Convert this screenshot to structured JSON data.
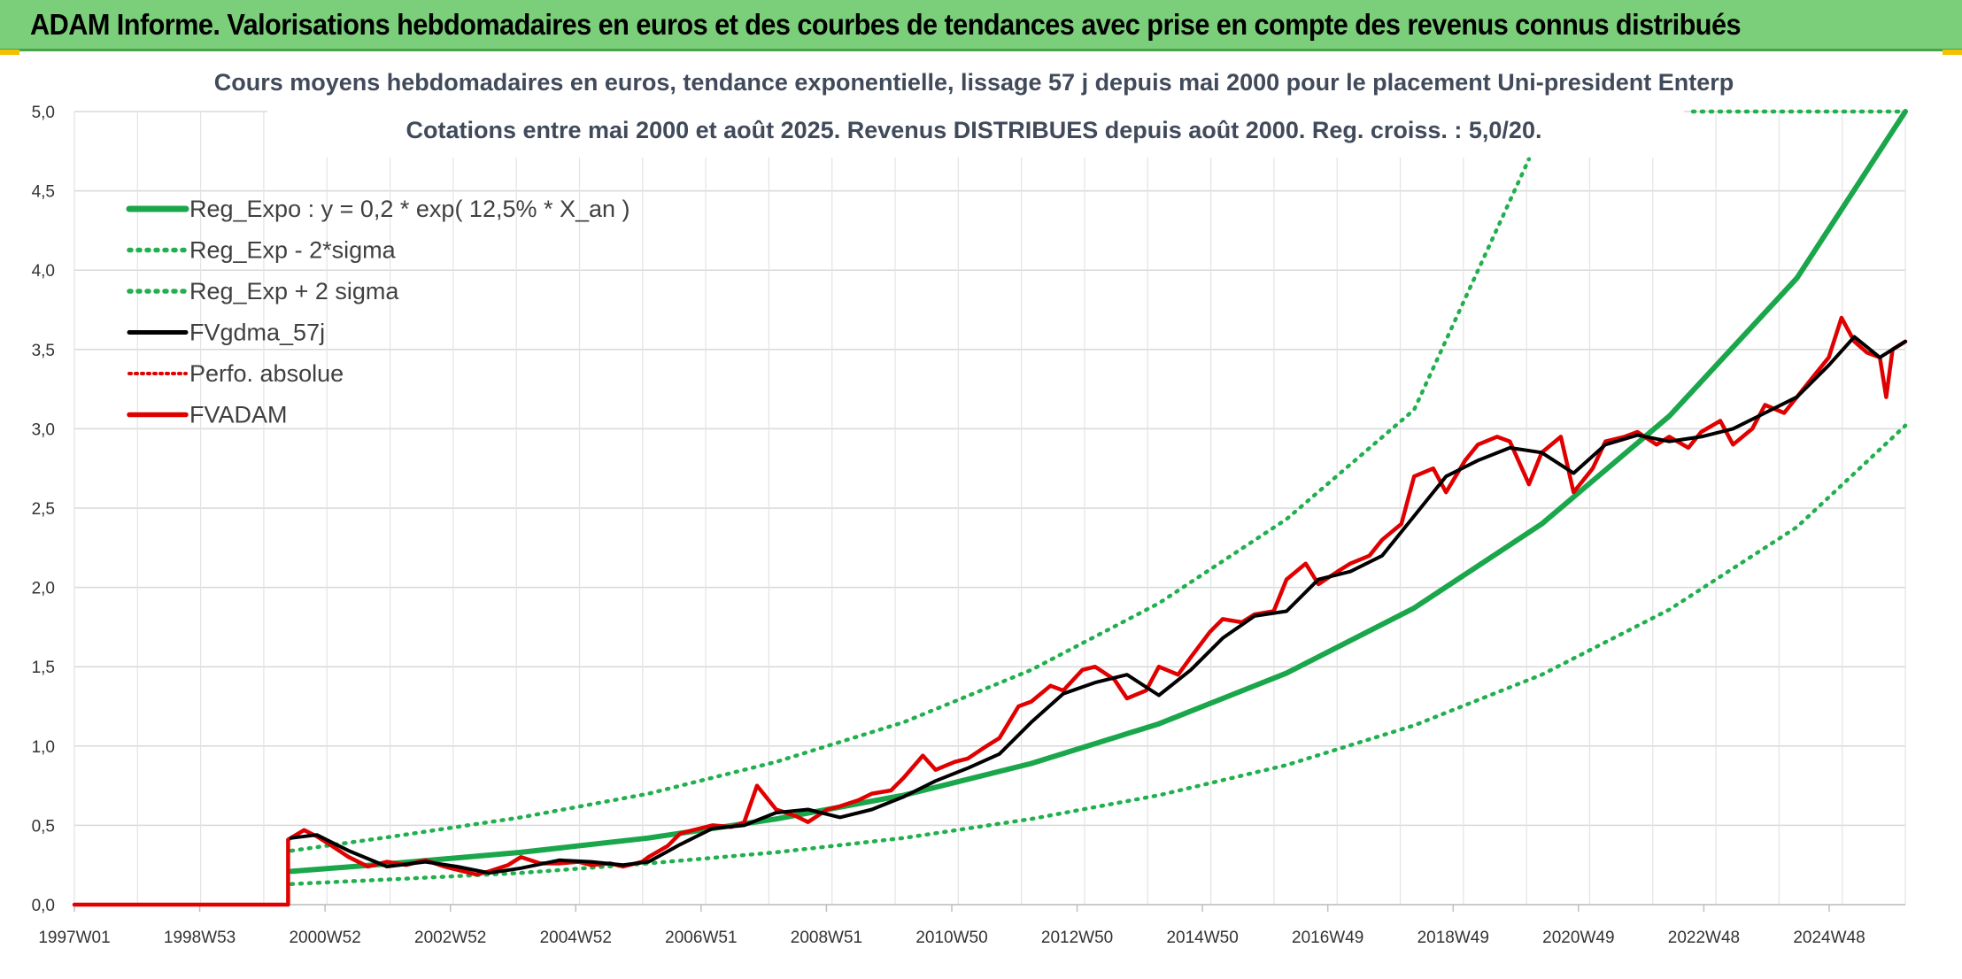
{
  "header": {
    "title": "ADAM Informe. Valorisations hebdomadaires en euros et des courbes de tendances avec prise en compte des revenus connus distribués"
  },
  "colors": {
    "header_bg": "#7ccf7a",
    "reg_green": "#1aa64a",
    "dotted_green": "#22b04f",
    "black_line": "#000000",
    "red_line": "#e00000"
  },
  "chart_data": {
    "type": "line",
    "title": "Cours moyens hebdomadaires en euros, tendance exponentielle, lissage 57 j depuis mai 2000 pour le placement Uni-president Enterp",
    "subtitle": "Cotations entre mai 2000 et août 2025. Revenus DISTRIBUES depuis août 2000. Reg. croiss. : 5,0/20.",
    "xlabel": "",
    "ylabel": "",
    "x_tick_labels": [
      "1997W01",
      "1998W53",
      "2000W52",
      "2002W52",
      "2004W52",
      "2006W51",
      "2008W51",
      "2010W50",
      "2012W50",
      "2014W50",
      "2016W49",
      "2018W49",
      "2020W49",
      "2022W48",
      "2024W48"
    ],
    "xlim": [
      1997.0,
      2025.7
    ],
    "ylim": [
      0,
      5.0
    ],
    "y_ticks": [
      "0,0",
      "0,5",
      "1,0",
      "1,5",
      "2,0",
      "2,5",
      "3,0",
      "3,5",
      "4,0",
      "4,5",
      "5,0"
    ],
    "grid": true,
    "legend_position": "top-left",
    "series": [
      {
        "name": "Reg_Expo : y = 0,2 * exp( 12,5% *  X_an )",
        "style": "solid",
        "color": "#1aa64a",
        "x": [
          2000.4,
          2002.0,
          2004.0,
          2006.0,
          2008.0,
          2010.0,
          2012.0,
          2014.0,
          2016.0,
          2018.0,
          2020.0,
          2022.0,
          2024.0,
          2025.7
        ],
        "y": [
          0.21,
          0.26,
          0.33,
          0.42,
          0.54,
          0.69,
          0.89,
          1.14,
          1.46,
          1.87,
          2.4,
          3.08,
          3.95,
          5.0
        ]
      },
      {
        "name": "Reg_Exp - 2*sigma",
        "style": "dotted",
        "color": "#22b04f",
        "x": [
          2000.4,
          2002.0,
          2004.0,
          2006.0,
          2008.0,
          2010.0,
          2012.0,
          2014.0,
          2016.0,
          2018.0,
          2020.0,
          2022.0,
          2024.0,
          2025.7
        ],
        "y": [
          0.13,
          0.16,
          0.2,
          0.26,
          0.33,
          0.42,
          0.54,
          0.69,
          0.88,
          1.13,
          1.45,
          1.86,
          2.38,
          3.02
        ]
      },
      {
        "name": "Reg_Exp + 2 sigma",
        "style": "dotted",
        "color": "#22b04f",
        "x": [
          2000.4,
          2002.0,
          2004.0,
          2006.0,
          2008.0,
          2010.0,
          2012.0,
          2014.0,
          2016.0,
          2018.0,
          2019.8
        ],
        "y": [
          0.34,
          0.43,
          0.55,
          0.7,
          0.9,
          1.15,
          1.48,
          1.9,
          2.43,
          3.12,
          4.7
        ]
      },
      {
        "name": "FVgdma_57j",
        "style": "solid",
        "color": "#000000",
        "x": [
          2000.4,
          2000.8,
          2001.3,
          2001.9,
          2002.5,
          2003.0,
          2003.5,
          2004.0,
          2004.6,
          2005.1,
          2005.6,
          2006.0,
          2006.5,
          2007.0,
          2007.5,
          2008.0,
          2008.5,
          2009.0,
          2009.5,
          2010.0,
          2010.5,
          2011.0,
          2011.5,
          2012.0,
          2012.5,
          2013.0,
          2013.5,
          2014.0,
          2014.5,
          2015.0,
          2015.5,
          2016.0,
          2016.5,
          2017.0,
          2017.5,
          2018.0,
          2018.5,
          2019.0,
          2019.5,
          2020.0,
          2020.5,
          2021.0,
          2021.5,
          2022.0,
          2022.5,
          2023.0,
          2023.5,
          2024.0,
          2024.5,
          2024.9,
          2025.3,
          2025.7
        ],
        "y": [
          0.42,
          0.44,
          0.34,
          0.24,
          0.27,
          0.24,
          0.2,
          0.23,
          0.28,
          0.27,
          0.25,
          0.27,
          0.38,
          0.48,
          0.5,
          0.58,
          0.6,
          0.55,
          0.6,
          0.68,
          0.78,
          0.86,
          0.95,
          1.15,
          1.33,
          1.4,
          1.45,
          1.32,
          1.48,
          1.68,
          1.82,
          1.85,
          2.05,
          2.1,
          2.2,
          2.45,
          2.7,
          2.8,
          2.88,
          2.85,
          2.72,
          2.9,
          2.96,
          2.92,
          2.95,
          3.0,
          3.1,
          3.2,
          3.4,
          3.58,
          3.45,
          3.55
        ]
      },
      {
        "name": "Perfo. absolue",
        "style": "dotted",
        "color": "#e00000",
        "x": [],
        "y": []
      },
      {
        "name": "FVADAM",
        "style": "solid",
        "color": "#e00000",
        "x": [
          1997.0,
          2000.35,
          2000.35,
          2000.6,
          2000.8,
          2001.0,
          2001.3,
          2001.6,
          2001.9,
          2002.2,
          2002.5,
          2002.8,
          2003.0,
          2003.3,
          2003.5,
          2003.8,
          2004.0,
          2004.3,
          2004.6,
          2004.9,
          2005.1,
          2005.4,
          2005.6,
          2005.9,
          2006.0,
          2006.3,
          2006.5,
          2006.8,
          2007.0,
          2007.3,
          2007.5,
          2007.7,
          2008.0,
          2008.3,
          2008.5,
          2008.8,
          2009.0,
          2009.3,
          2009.5,
          2009.8,
          2010.0,
          2010.3,
          2010.5,
          2010.8,
          2011.0,
          2011.3,
          2011.5,
          2011.8,
          2012.0,
          2012.3,
          2012.5,
          2012.8,
          2013.0,
          2013.3,
          2013.5,
          2013.8,
          2014.0,
          2014.3,
          2014.5,
          2014.8,
          2015.0,
          2015.3,
          2015.5,
          2015.8,
          2016.0,
          2016.3,
          2016.5,
          2016.8,
          2017.0,
          2017.3,
          2017.5,
          2017.8,
          2018.0,
          2018.3,
          2018.5,
          2018.8,
          2019.0,
          2019.3,
          2019.5,
          2019.8,
          2020.0,
          2020.3,
          2020.5,
          2020.8,
          2021.0,
          2021.3,
          2021.5,
          2021.8,
          2022.0,
          2022.3,
          2022.5,
          2022.8,
          2023.0,
          2023.3,
          2023.5,
          2023.8,
          2024.0,
          2024.3,
          2024.5,
          2024.7,
          2024.9,
          2025.1,
          2025.3,
          2025.4,
          2025.5,
          2025.7
        ],
        "y": [
          0.0,
          0.0,
          0.41,
          0.47,
          0.43,
          0.38,
          0.3,
          0.24,
          0.27,
          0.25,
          0.28,
          0.24,
          0.22,
          0.19,
          0.21,
          0.25,
          0.3,
          0.26,
          0.26,
          0.27,
          0.25,
          0.26,
          0.24,
          0.27,
          0.3,
          0.37,
          0.45,
          0.48,
          0.5,
          0.49,
          0.52,
          0.75,
          0.6,
          0.56,
          0.52,
          0.6,
          0.62,
          0.66,
          0.7,
          0.72,
          0.8,
          0.94,
          0.85,
          0.9,
          0.92,
          1.0,
          1.05,
          1.25,
          1.28,
          1.38,
          1.35,
          1.48,
          1.5,
          1.42,
          1.3,
          1.35,
          1.5,
          1.45,
          1.56,
          1.72,
          1.8,
          1.78,
          1.83,
          1.85,
          2.05,
          2.15,
          2.02,
          2.1,
          2.15,
          2.2,
          2.3,
          2.4,
          2.7,
          2.75,
          2.6,
          2.8,
          2.9,
          2.95,
          2.92,
          2.65,
          2.85,
          2.95,
          2.6,
          2.75,
          2.92,
          2.95,
          2.98,
          2.9,
          2.95,
          2.88,
          2.98,
          3.05,
          2.9,
          3.0,
          3.15,
          3.1,
          3.2,
          3.35,
          3.45,
          3.7,
          3.55,
          3.48,
          3.45,
          3.2,
          3.5,
          3.55
        ]
      }
    ]
  }
}
